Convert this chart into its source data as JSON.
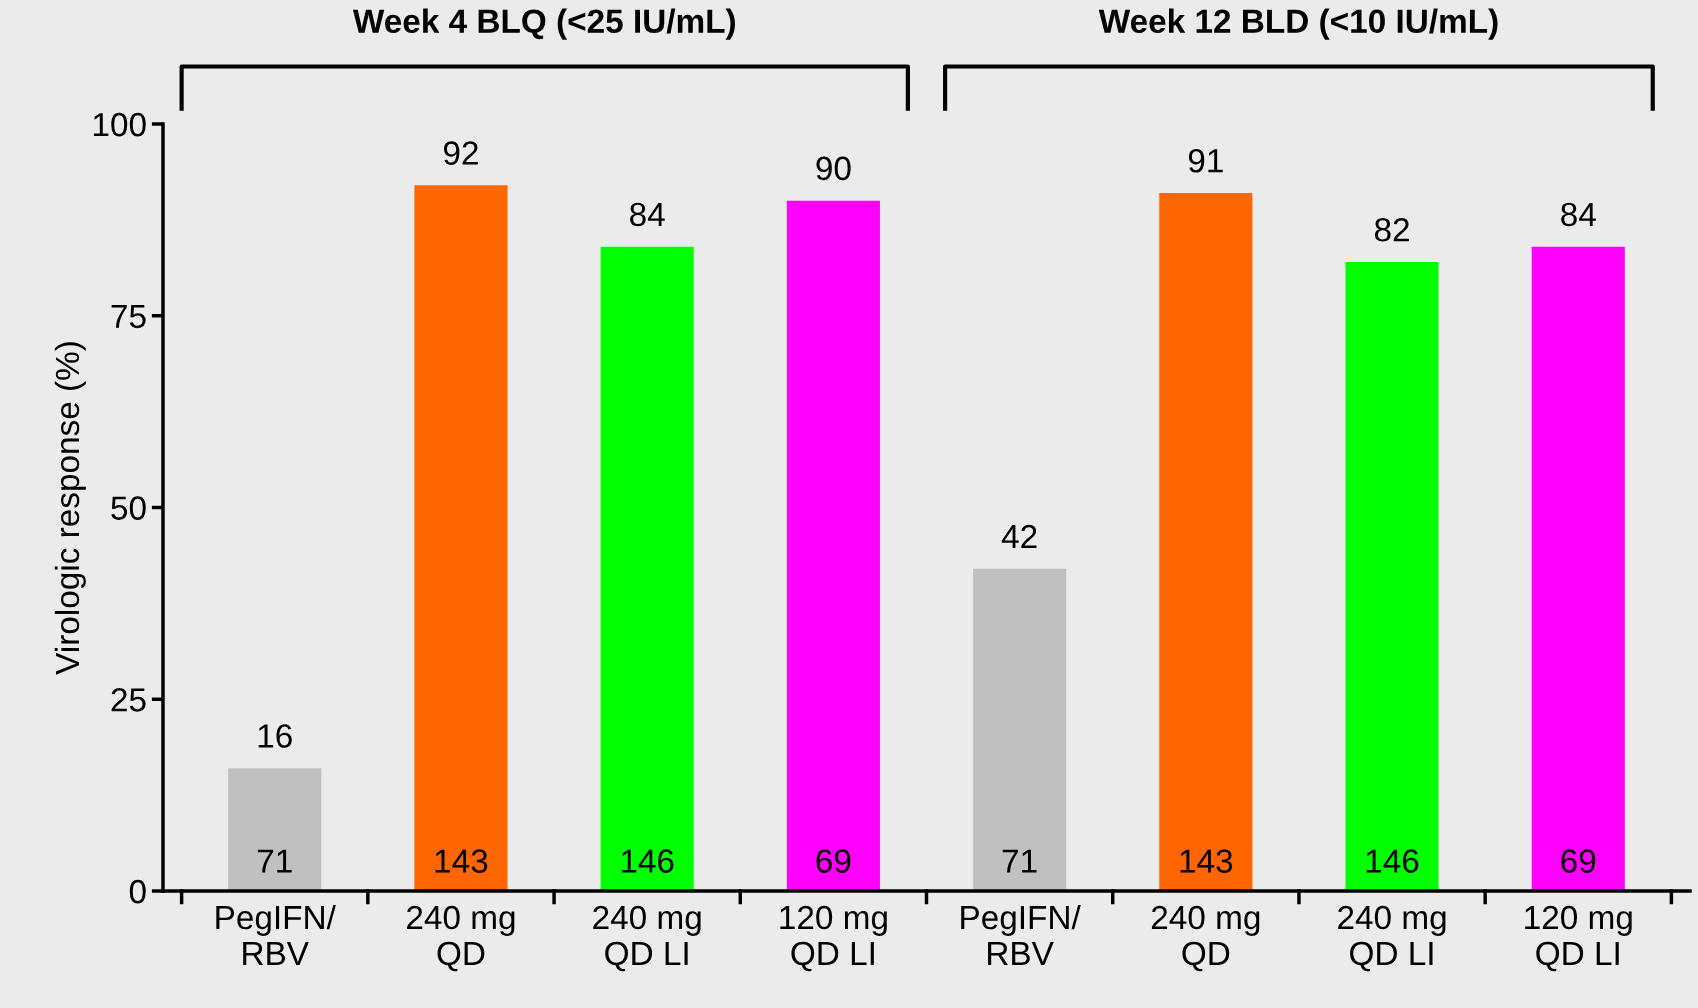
{
  "chart_data": {
    "type": "bar",
    "ylabel": "Virologic response (%)",
    "categories": [
      "PegIFN/\nRBV",
      "240 mg\nQD",
      "240 mg\nQD LI",
      "120 mg\nQD LI",
      "PegIFN/\nRBV",
      "240 mg\nQD",
      "240 mg\nQD LI",
      "120 mg\nQD LI"
    ],
    "values": [
      16,
      92,
      84,
      90,
      42,
      91,
      82,
      84
    ],
    "colors": [
      "#c0c0c0",
      "#ff6600",
      "#00ff00",
      "#ff00ff",
      "#c0c0c0",
      "#ff6600",
      "#00ff00",
      "#ff00ff"
    ],
    "ylim": [
      0,
      100
    ],
    "yticks": [
      0,
      25,
      50,
      75,
      100
    ],
    "grid": false,
    "data_labels": true,
    "annotations": [
      "Week 4 BLQ (<25 IU/mL)",
      "Week 12 BLD (<10 IU/mL)",
      "71",
      "143",
      "146",
      "69",
      "71",
      "143",
      "146",
      "69"
    ]
  }
}
